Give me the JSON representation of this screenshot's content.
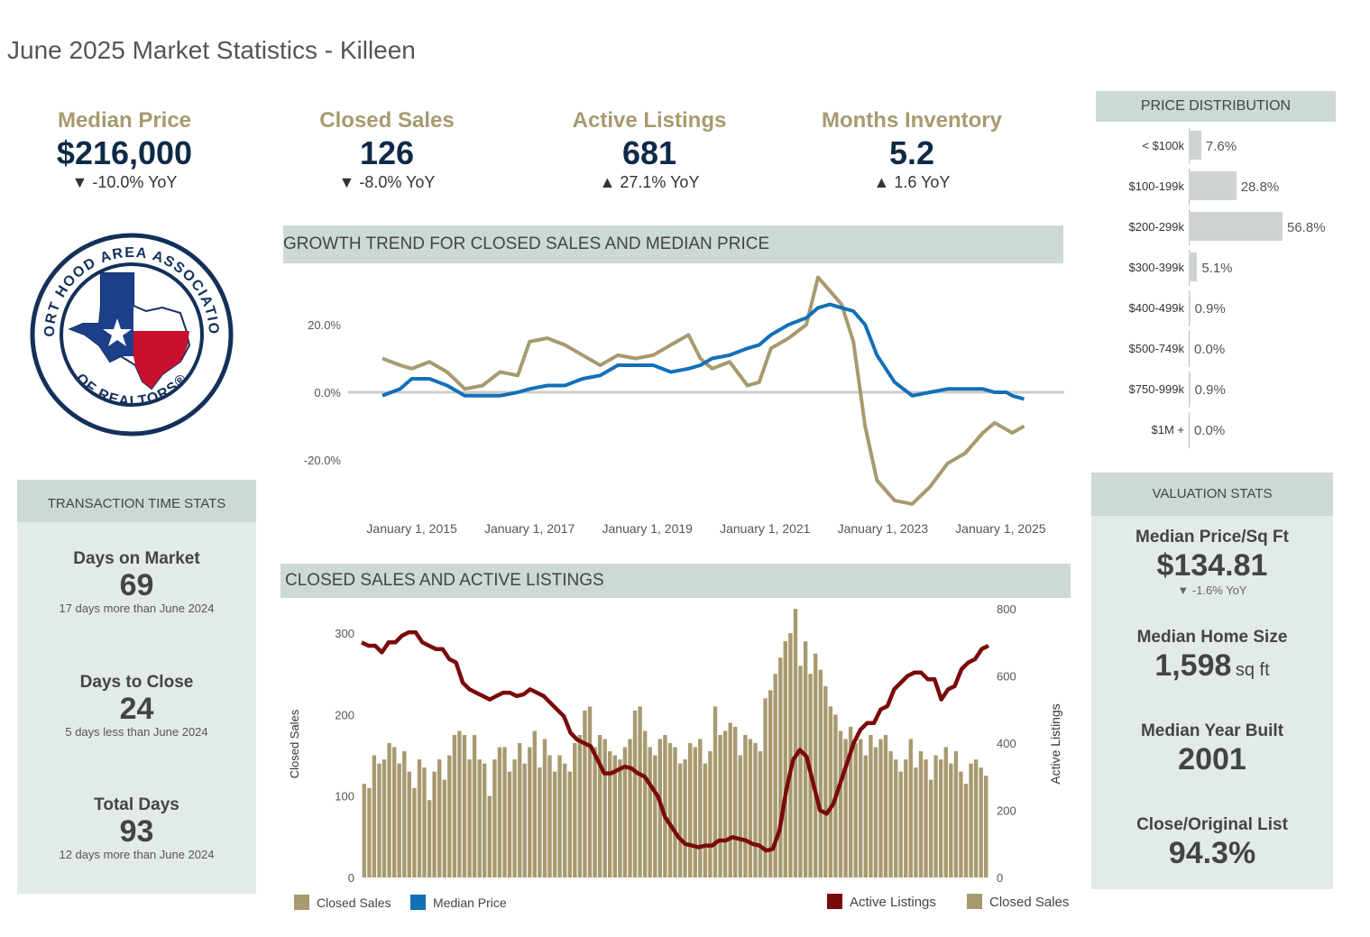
{
  "page_title": "June 2025 Market Statistics - Killeen",
  "kpis": [
    {
      "label": "Median Price",
      "value": "$216,000",
      "yoy": "▼ -10.0% YoY"
    },
    {
      "label": "Closed Sales",
      "value": "126",
      "yoy": "▼ -8.0% YoY"
    },
    {
      "label": "Active Listings",
      "value": "681",
      "yoy": "▲ 27.1% YoY"
    },
    {
      "label": "Months Inventory",
      "value": "5.2",
      "yoy": "▲ 1.6 YoY"
    }
  ],
  "logo": {
    "text_top": "FORT HOOD AREA ASSOCIATION",
    "text_bottom": "OF REALTORS®"
  },
  "transaction": {
    "title": "TRANSACTION TIME STATS",
    "items": [
      {
        "label": "Days on Market",
        "value": "69",
        "note": "17 days more than June 2024"
      },
      {
        "label": "Days to Close",
        "value": "24",
        "note": "5 days less than June 2024"
      },
      {
        "label": "Total Days",
        "value": "93",
        "note": "12 days more than June 2024"
      }
    ]
  },
  "growth_chart": {
    "title": "GROWTH TREND FOR CLOSED SALES AND MEDIAN PRICE"
  },
  "sales_chart": {
    "title": "CLOSED SALES AND ACTIVE LISTINGS"
  },
  "price_distribution": {
    "title": "PRICE DISTRIBUTION",
    "rows": [
      {
        "label": "< $100k",
        "pct": "7.6%",
        "value": 7.6
      },
      {
        "label": "$100-199k",
        "pct": "28.8%",
        "value": 28.8
      },
      {
        "label": "$200-299k",
        "pct": "56.8%",
        "value": 56.8
      },
      {
        "label": "$300-399k",
        "pct": "5.1%",
        "value": 5.1
      },
      {
        "label": "$400-499k",
        "pct": "0.9%",
        "value": 0.9
      },
      {
        "label": "$500-749k",
        "pct": "0.0%",
        "value": 0.0
      },
      {
        "label": "$750-999k",
        "pct": "0.9%",
        "value": 0.9
      },
      {
        "label": "$1M +",
        "pct": "0.0%",
        "value": 0.0
      }
    ]
  },
  "valuation": {
    "title": "VALUATION STATS",
    "price_sqft_label": "Median Price/Sq Ft",
    "price_sqft_value": "$134.81",
    "price_sqft_yoy": "▼ -1.6% YoY",
    "home_size_label": "Median Home Size",
    "home_size_value": "1,598",
    "home_size_unit": "sq ft",
    "year_built_label": "Median Year Built",
    "year_built_value": "2001",
    "close_list_label": "Close/Original List",
    "close_list_value": "94.3%"
  },
  "colors": {
    "gold": "#a89a6f",
    "blue": "#1170b8",
    "maroon": "#7a0a0a",
    "navy": "#0f2a47",
    "header_bg": "#cdd9d4",
    "panel_bg": "#e3ebe8"
  },
  "chart_data": [
    {
      "type": "line",
      "title": "GROWTH TREND FOR CLOSED SALES AND MEDIAN PRICE",
      "x_ticks": [
        "January 1, 2015",
        "January 1, 2017",
        "January 1, 2019",
        "January 1, 2021",
        "January 1, 2023",
        "January 1, 2025"
      ],
      "y_ticks": [
        "20.0%",
        "0.0%",
        "-20.0%"
      ],
      "ylim": [
        -36,
        36
      ],
      "x_start": 2014.5,
      "x_end": 2025.5,
      "series": [
        {
          "name": "Closed Sales",
          "color": "#a89a6f",
          "points": [
            [
              2014.5,
              10
            ],
            [
              2014.8,
              8
            ],
            [
              2015.0,
              7
            ],
            [
              2015.3,
              9
            ],
            [
              2015.6,
              6
            ],
            [
              2015.9,
              1
            ],
            [
              2016.2,
              2
            ],
            [
              2016.5,
              6
            ],
            [
              2016.8,
              5
            ],
            [
              2017.0,
              15
            ],
            [
              2017.3,
              16
            ],
            [
              2017.6,
              14
            ],
            [
              2017.9,
              11
            ],
            [
              2018.2,
              8
            ],
            [
              2018.5,
              11
            ],
            [
              2018.8,
              10
            ],
            [
              2019.1,
              11
            ],
            [
              2019.4,
              14
            ],
            [
              2019.7,
              17
            ],
            [
              2019.9,
              10
            ],
            [
              2020.1,
              7
            ],
            [
              2020.4,
              9
            ],
            [
              2020.7,
              2
            ],
            [
              2020.9,
              3
            ],
            [
              2021.1,
              13
            ],
            [
              2021.4,
              16
            ],
            [
              2021.7,
              20
            ],
            [
              2021.9,
              34
            ],
            [
              2022.1,
              30
            ],
            [
              2022.3,
              26
            ],
            [
              2022.5,
              15
            ],
            [
              2022.7,
              -10
            ],
            [
              2022.9,
              -26
            ],
            [
              2023.2,
              -32
            ],
            [
              2023.5,
              -33
            ],
            [
              2023.8,
              -28
            ],
            [
              2024.1,
              -21
            ],
            [
              2024.4,
              -18
            ],
            [
              2024.7,
              -12
            ],
            [
              2024.9,
              -9
            ],
            [
              2025.1,
              -11
            ],
            [
              2025.2,
              -12
            ],
            [
              2025.4,
              -10
            ]
          ]
        },
        {
          "name": "Median Price",
          "color": "#1170b8",
          "points": [
            [
              2014.5,
              -1
            ],
            [
              2014.8,
              1
            ],
            [
              2015.0,
              4
            ],
            [
              2015.3,
              4
            ],
            [
              2015.6,
              2
            ],
            [
              2015.9,
              -1
            ],
            [
              2016.2,
              -1
            ],
            [
              2016.5,
              -1
            ],
            [
              2016.8,
              0
            ],
            [
              2017.0,
              1
            ],
            [
              2017.3,
              2
            ],
            [
              2017.6,
              2
            ],
            [
              2017.9,
              4
            ],
            [
              2018.2,
              5
            ],
            [
              2018.5,
              8
            ],
            [
              2018.8,
              8
            ],
            [
              2019.1,
              8
            ],
            [
              2019.4,
              6
            ],
            [
              2019.7,
              7
            ],
            [
              2019.9,
              8
            ],
            [
              2020.1,
              10
            ],
            [
              2020.4,
              11
            ],
            [
              2020.7,
              13
            ],
            [
              2020.9,
              14
            ],
            [
              2021.1,
              17
            ],
            [
              2021.4,
              20
            ],
            [
              2021.7,
              22
            ],
            [
              2021.9,
              25
            ],
            [
              2022.1,
              26
            ],
            [
              2022.3,
              25
            ],
            [
              2022.5,
              24
            ],
            [
              2022.7,
              20
            ],
            [
              2022.9,
              11
            ],
            [
              2023.2,
              3
            ],
            [
              2023.5,
              -1
            ],
            [
              2023.8,
              0
            ],
            [
              2024.1,
              1
            ],
            [
              2024.4,
              1
            ],
            [
              2024.7,
              1
            ],
            [
              2024.9,
              0
            ],
            [
              2025.1,
              0
            ],
            [
              2025.2,
              -1
            ],
            [
              2025.4,
              -2
            ]
          ]
        }
      ]
    },
    {
      "type": "bar",
      "title": "CLOSED SALES AND ACTIVE LISTINGS",
      "left_axis": {
        "label": "Closed Sales",
        "ticks": [
          "300",
          "200",
          "100",
          "0"
        ],
        "max": 330
      },
      "right_axis": {
        "label": "Active Listings",
        "ticks": [
          "800",
          "600",
          "400",
          "200",
          "0"
        ],
        "max": 800
      },
      "legend_left": [
        "Closed Sales",
        "Median Price"
      ],
      "legend_right": [
        "Active Listings",
        "Closed Sales"
      ],
      "series": [
        {
          "name": "Closed Sales",
          "color": "#a89a6f",
          "axis": "left",
          "values": [
            115,
            110,
            150,
            140,
            145,
            165,
            160,
            140,
            155,
            130,
            110,
            145,
            135,
            95,
            130,
            145,
            120,
            150,
            175,
            180,
            175,
            145,
            175,
            145,
            140,
            100,
            145,
            160,
            160,
            130,
            145,
            165,
            140,
            160,
            180,
            135,
            170,
            150,
            130,
            150,
            140,
            130,
            165,
            175,
            205,
            210,
            160,
            175,
            170,
            155,
            150,
            145,
            160,
            170,
            205,
            210,
            180,
            160,
            150,
            170,
            175,
            165,
            160,
            140,
            145,
            165,
            160,
            170,
            140,
            155,
            210,
            175,
            180,
            190,
            185,
            150,
            175,
            170,
            165,
            155,
            220,
            230,
            250,
            270,
            290,
            300,
            330,
            260,
            290,
            250,
            275,
            255,
            235,
            210,
            200,
            180,
            170,
            185,
            165,
            170,
            150,
            175,
            160,
            170,
            175,
            155,
            145,
            130,
            145,
            170,
            135,
            155,
            145,
            120,
            150,
            145,
            160,
            140,
            155,
            130,
            115,
            140,
            145,
            135,
            125
          ]
        },
        {
          "name": "Active Listings",
          "color": "#7a0a0a",
          "axis": "right",
          "values": [
            700,
            690,
            690,
            670,
            700,
            700,
            720,
            730,
            730,
            700,
            690,
            680,
            680,
            650,
            640,
            580,
            560,
            550,
            540,
            530,
            540,
            550,
            550,
            540,
            545,
            560,
            550,
            540,
            520,
            500,
            480,
            430,
            410,
            400,
            390,
            350,
            310,
            310,
            320,
            330,
            325,
            310,
            300,
            270,
            240,
            180,
            150,
            120,
            100,
            95,
            90,
            95,
            95,
            110,
            110,
            120,
            115,
            110,
            100,
            95,
            80,
            85,
            140,
            260,
            350,
            380,
            360,
            280,
            200,
            190,
            220,
            280,
            340,
            400,
            440,
            460,
            460,
            500,
            510,
            560,
            580,
            600,
            610,
            610,
            590,
            590,
            530,
            560,
            570,
            620,
            640,
            650,
            680,
            690
          ]
        }
      ]
    }
  ]
}
